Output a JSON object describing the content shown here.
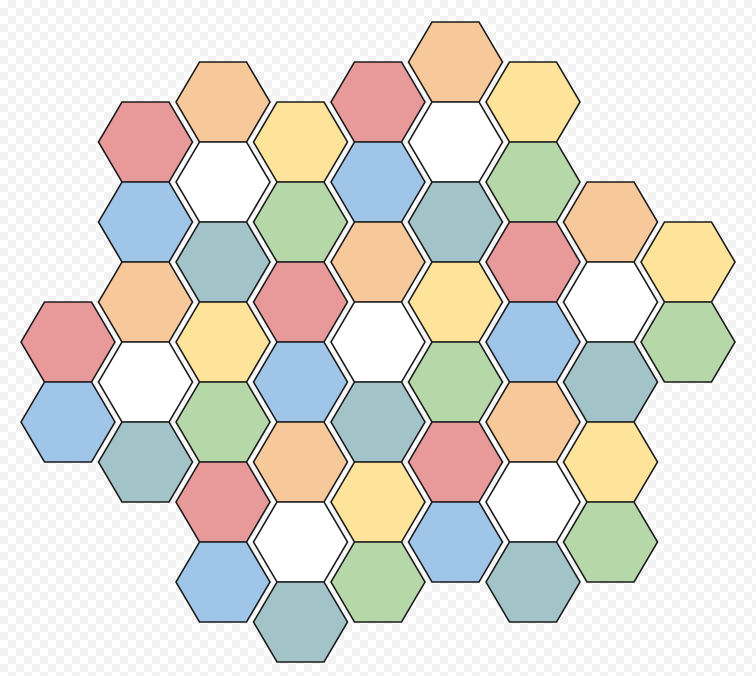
{
  "palette": {
    "white": "#ffffff",
    "red": "#e8999a",
    "orange": "#f7c99a",
    "yellow": "#fde49a",
    "blue": "#9fc5e8",
    "green": "#b6d7a8",
    "teal": "#a2c4c9"
  },
  "grid": {
    "shape": "hexagonal tile grid",
    "orientation": "flat-top",
    "outline_color": "#1a1a1a",
    "tiles": [
      {
        "col": 0,
        "row": 7,
        "color": "red"
      },
      {
        "col": 0,
        "row": 9,
        "color": "blue"
      },
      {
        "col": 1,
        "row": 2,
        "color": "red"
      },
      {
        "col": 1,
        "row": 4,
        "color": "blue"
      },
      {
        "col": 1,
        "row": 6,
        "color": "orange"
      },
      {
        "col": 1,
        "row": 8,
        "color": "white"
      },
      {
        "col": 1,
        "row": 10,
        "color": "teal"
      },
      {
        "col": 2,
        "row": 1,
        "color": "orange"
      },
      {
        "col": 2,
        "row": 3,
        "color": "white"
      },
      {
        "col": 2,
        "row": 5,
        "color": "teal"
      },
      {
        "col": 2,
        "row": 7,
        "color": "yellow"
      },
      {
        "col": 2,
        "row": 9,
        "color": "green"
      },
      {
        "col": 2,
        "row": 11,
        "color": "red"
      },
      {
        "col": 2,
        "row": 13,
        "color": "blue"
      },
      {
        "col": 3,
        "row": 2,
        "color": "yellow"
      },
      {
        "col": 3,
        "row": 4,
        "color": "green"
      },
      {
        "col": 3,
        "row": 6,
        "color": "red"
      },
      {
        "col": 3,
        "row": 8,
        "color": "blue"
      },
      {
        "col": 3,
        "row": 10,
        "color": "orange"
      },
      {
        "col": 3,
        "row": 12,
        "color": "white"
      },
      {
        "col": 3,
        "row": 14,
        "color": "teal"
      },
      {
        "col": 4,
        "row": 1,
        "color": "red"
      },
      {
        "col": 4,
        "row": 3,
        "color": "blue"
      },
      {
        "col": 4,
        "row": 5,
        "color": "orange"
      },
      {
        "col": 4,
        "row": 7,
        "color": "white"
      },
      {
        "col": 4,
        "row": 9,
        "color": "teal"
      },
      {
        "col": 4,
        "row": 11,
        "color": "yellow"
      },
      {
        "col": 4,
        "row": 13,
        "color": "green"
      },
      {
        "col": 5,
        "row": 0,
        "color": "orange"
      },
      {
        "col": 5,
        "row": 2,
        "color": "white"
      },
      {
        "col": 5,
        "row": 4,
        "color": "teal"
      },
      {
        "col": 5,
        "row": 6,
        "color": "yellow"
      },
      {
        "col": 5,
        "row": 8,
        "color": "green"
      },
      {
        "col": 5,
        "row": 10,
        "color": "red"
      },
      {
        "col": 5,
        "row": 12,
        "color": "blue"
      },
      {
        "col": 6,
        "row": 1,
        "color": "yellow"
      },
      {
        "col": 6,
        "row": 3,
        "color": "green"
      },
      {
        "col": 6,
        "row": 5,
        "color": "red"
      },
      {
        "col": 6,
        "row": 7,
        "color": "blue"
      },
      {
        "col": 6,
        "row": 9,
        "color": "orange"
      },
      {
        "col": 6,
        "row": 11,
        "color": "white"
      },
      {
        "col": 6,
        "row": 13,
        "color": "teal"
      },
      {
        "col": 7,
        "row": 4,
        "color": "orange"
      },
      {
        "col": 7,
        "row": 6,
        "color": "white"
      },
      {
        "col": 7,
        "row": 8,
        "color": "teal"
      },
      {
        "col": 7,
        "row": 10,
        "color": "yellow"
      },
      {
        "col": 7,
        "row": 12,
        "color": "green"
      },
      {
        "col": 8,
        "row": 5,
        "color": "yellow"
      },
      {
        "col": 8,
        "row": 7,
        "color": "green"
      }
    ]
  }
}
